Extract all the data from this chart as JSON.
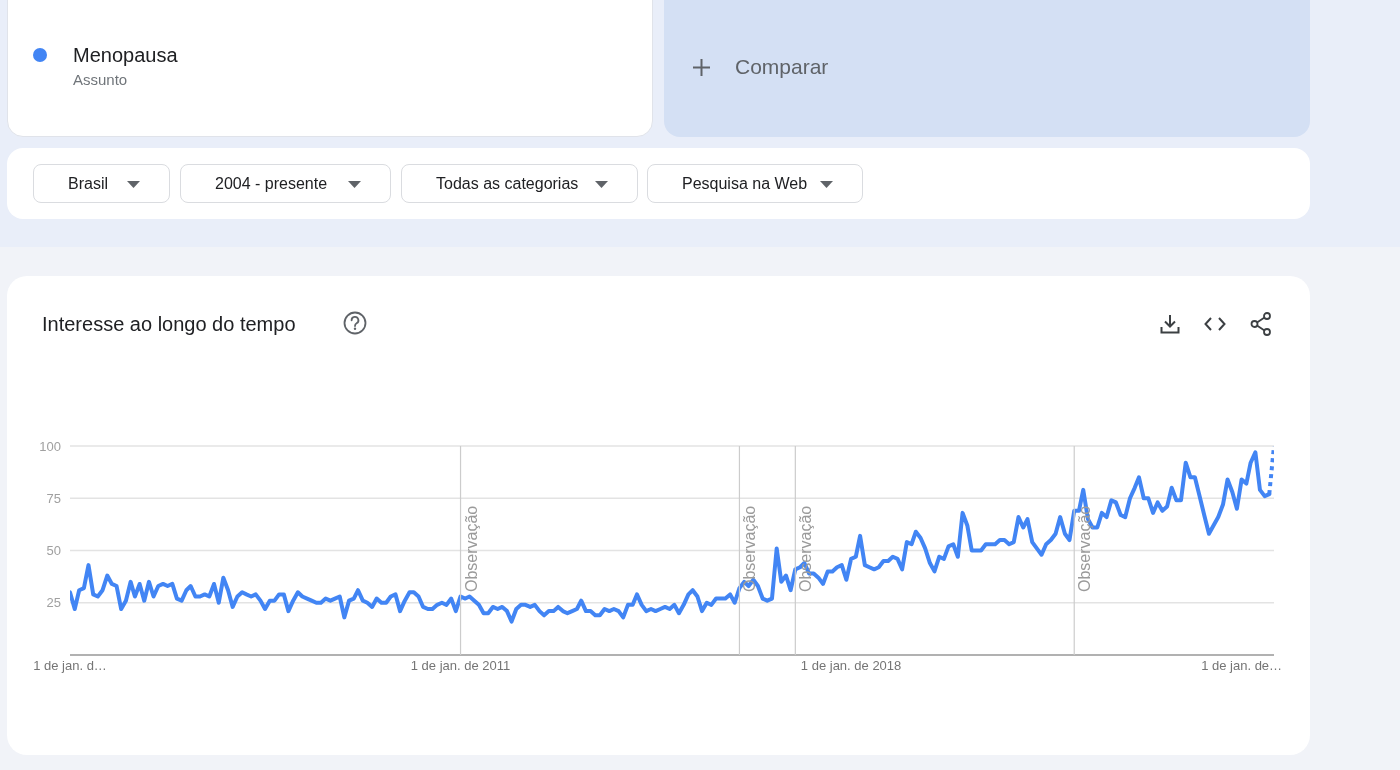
{
  "chart_data": {
    "type": "line",
    "title": "Interesse ao longo do tempo",
    "x": [
      "2004-01",
      "2004-02",
      "2004-03",
      "2004-04",
      "2004-05",
      "2004-06",
      "2004-07",
      "2004-08",
      "2004-09",
      "2004-10",
      "2004-11",
      "2004-12",
      "2005-01",
      "2005-02",
      "2005-03",
      "2005-04",
      "2005-05",
      "2005-06",
      "2005-07",
      "2005-08",
      "2005-09",
      "2005-10",
      "2005-11",
      "2005-12",
      "2006-01",
      "2006-02",
      "2006-03",
      "2006-04",
      "2006-05",
      "2006-06",
      "2006-07",
      "2006-08",
      "2006-09",
      "2006-10",
      "2006-11",
      "2006-12",
      "2007-01",
      "2007-02",
      "2007-03",
      "2007-04",
      "2007-05",
      "2007-06",
      "2007-07",
      "2007-08",
      "2007-09",
      "2007-10",
      "2007-11",
      "2007-12",
      "2008-01",
      "2008-02",
      "2008-03",
      "2008-04",
      "2008-05",
      "2008-06",
      "2008-07",
      "2008-08",
      "2008-09",
      "2008-10",
      "2008-11",
      "2008-12",
      "2009-01",
      "2009-02",
      "2009-03",
      "2009-04",
      "2009-05",
      "2009-06",
      "2009-07",
      "2009-08",
      "2009-09",
      "2009-10",
      "2009-11",
      "2009-12",
      "2010-01",
      "2010-02",
      "2010-03",
      "2010-04",
      "2010-05",
      "2010-06",
      "2010-07",
      "2010-08",
      "2010-09",
      "2010-10",
      "2010-11",
      "2010-12",
      "2011-01",
      "2011-02",
      "2011-03",
      "2011-04",
      "2011-05",
      "2011-06",
      "2011-07",
      "2011-08",
      "2011-09",
      "2011-10",
      "2011-11",
      "2011-12",
      "2012-01",
      "2012-02",
      "2012-03",
      "2012-04",
      "2012-05",
      "2012-06",
      "2012-07",
      "2012-08",
      "2012-09",
      "2012-10",
      "2012-11",
      "2012-12",
      "2013-01",
      "2013-02",
      "2013-03",
      "2013-04",
      "2013-05",
      "2013-06",
      "2013-07",
      "2013-08",
      "2013-09",
      "2013-10",
      "2013-11",
      "2013-12",
      "2014-01",
      "2014-02",
      "2014-03",
      "2014-04",
      "2014-05",
      "2014-06",
      "2014-07",
      "2014-08",
      "2014-09",
      "2014-10",
      "2014-11",
      "2014-12",
      "2015-01",
      "2015-02",
      "2015-03",
      "2015-04",
      "2015-05",
      "2015-06",
      "2015-07",
      "2015-08",
      "2015-09",
      "2015-10",
      "2015-11",
      "2015-12",
      "2016-01",
      "2016-02",
      "2016-03",
      "2016-04",
      "2016-05",
      "2016-06",
      "2016-07",
      "2016-08",
      "2016-09",
      "2016-10",
      "2016-11",
      "2016-12",
      "2017-01",
      "2017-02",
      "2017-03",
      "2017-04",
      "2017-05",
      "2017-06",
      "2017-07",
      "2017-08",
      "2017-09",
      "2017-10",
      "2017-11",
      "2017-12",
      "2018-01",
      "2018-02",
      "2018-03",
      "2018-04",
      "2018-05",
      "2018-06",
      "2018-07",
      "2018-08",
      "2018-09",
      "2018-10",
      "2018-11",
      "2018-12",
      "2019-01",
      "2019-02",
      "2019-03",
      "2019-04",
      "2019-05",
      "2019-06",
      "2019-07",
      "2019-08",
      "2019-09",
      "2019-10",
      "2019-11",
      "2019-12",
      "2020-01",
      "2020-02",
      "2020-03",
      "2020-04",
      "2020-05",
      "2020-06",
      "2020-07",
      "2020-08",
      "2020-09",
      "2020-10",
      "2020-11",
      "2020-12",
      "2021-01",
      "2021-02",
      "2021-03",
      "2021-04",
      "2021-05",
      "2021-06",
      "2021-07",
      "2021-08",
      "2021-09",
      "2021-10",
      "2021-11",
      "2021-12",
      "2022-01",
      "2022-02",
      "2022-03",
      "2022-04",
      "2022-05",
      "2022-06",
      "2022-07",
      "2022-08",
      "2022-09",
      "2022-10",
      "2022-11",
      "2022-12",
      "2023-01",
      "2023-02",
      "2023-03",
      "2023-04",
      "2023-05",
      "2023-06",
      "2023-07",
      "2023-08",
      "2023-09",
      "2023-10",
      "2023-11",
      "2023-12",
      "2024-01",
      "2024-02",
      "2024-03",
      "2024-04",
      "2024-05",
      "2024-06",
      "2024-07",
      "2024-08",
      "2024-09",
      "2024-10",
      "2024-11",
      "2024-12",
      "2025-01",
      "2025-02",
      "2025-03",
      "2025-04",
      "2025-05",
      "2025-06",
      "2025-07",
      "2025-08"
    ],
    "series": [
      {
        "name": "Menopausa",
        "color": "#4285f4",
        "values": [
          30,
          22,
          31,
          32,
          43,
          29,
          28,
          31,
          38,
          34,
          33,
          22,
          26,
          35,
          28,
          34,
          26,
          35,
          28,
          33,
          34,
          33,
          34,
          27,
          26,
          31,
          33,
          28,
          28,
          29,
          28,
          34,
          25,
          37,
          31,
          23,
          28,
          30,
          29,
          28,
          29,
          26,
          22,
          26,
          26,
          29,
          29,
          21,
          26,
          30,
          28,
          27,
          26,
          25,
          25,
          27,
          26,
          27,
          28,
          18,
          26,
          27,
          31,
          26,
          25,
          23,
          27,
          25,
          25,
          28,
          29,
          21,
          26,
          30,
          30,
          28,
          23,
          22,
          22,
          24,
          25,
          24,
          27,
          21,
          28,
          27,
          28,
          26,
          24,
          20,
          20,
          23,
          22,
          23,
          21,
          16,
          22,
          24,
          24,
          23,
          24,
          21,
          19,
          21,
          21,
          23,
          21,
          20,
          21,
          22,
          26,
          21,
          21,
          19,
          19,
          22,
          21,
          22,
          21,
          18,
          24,
          24,
          29,
          24,
          21,
          22,
          21,
          22,
          23,
          22,
          24,
          20,
          24,
          29,
          31,
          28,
          21,
          25,
          24,
          27,
          27,
          27,
          29,
          25,
          32,
          35,
          33,
          36,
          33,
          27,
          26,
          27,
          51,
          35,
          38,
          31,
          41,
          42,
          44,
          39,
          39,
          37,
          34,
          40,
          40,
          42,
          43,
          36,
          46,
          47,
          57,
          43,
          42,
          41,
          42,
          45,
          45,
          47,
          46,
          41,
          54,
          53,
          59,
          56,
          51,
          44,
          40,
          47,
          46,
          52,
          53,
          47,
          68,
          62,
          50,
          50,
          50,
          53,
          53,
          53,
          55,
          55,
          53,
          54,
          66,
          61,
          65,
          54,
          51,
          48,
          53,
          55,
          58,
          66,
          58,
          55,
          69,
          69,
          79,
          65,
          61,
          61,
          68,
          66,
          74,
          73,
          67,
          66,
          75,
          80,
          85,
          75,
          75,
          68,
          73,
          69,
          71,
          80,
          74,
          74,
          92,
          85,
          85,
          76,
          67,
          58,
          62,
          66,
          72,
          84,
          78,
          70,
          84,
          82,
          92,
          97,
          79,
          76,
          77,
          null
        ]
      },
      {
        "color": "#4285f4",
        "line_style": "dotted",
        "values": [
          null,
          null,
          null,
          null,
          null,
          null,
          null,
          null,
          null,
          null,
          null,
          null,
          null,
          null,
          null,
          null,
          null,
          null,
          null,
          null,
          null,
          null,
          null,
          null,
          null,
          null,
          null,
          null,
          null,
          null,
          null,
          null,
          null,
          null,
          null,
          null,
          null,
          null,
          null,
          null,
          null,
          null,
          null,
          null,
          null,
          null,
          null,
          null,
          null,
          null,
          null,
          null,
          null,
          null,
          null,
          null,
          null,
          null,
          null,
          null,
          null,
          null,
          null,
          null,
          null,
          null,
          null,
          null,
          null,
          null,
          null,
          null,
          null,
          null,
          null,
          null,
          null,
          null,
          null,
          null,
          null,
          null,
          null,
          null,
          null,
          null,
          null,
          null,
          null,
          null,
          null,
          null,
          null,
          null,
          null,
          null,
          null,
          null,
          null,
          null,
          null,
          null,
          null,
          null,
          null,
          null,
          null,
          null,
          null,
          null,
          null,
          null,
          null,
          null,
          null,
          null,
          null,
          null,
          null,
          null,
          null,
          null,
          null,
          null,
          null,
          null,
          null,
          null,
          null,
          null,
          null,
          null,
          null,
          null,
          null,
          null,
          null,
          null,
          null,
          null,
          null,
          null,
          null,
          null,
          null,
          null,
          null,
          null,
          null,
          null,
          null,
          null,
          null,
          null,
          null,
          null,
          null,
          null,
          null,
          null,
          null,
          null,
          null,
          null,
          null,
          null,
          null,
          null,
          null,
          null,
          null,
          null,
          null,
          null,
          null,
          null,
          null,
          null,
          null,
          null,
          null,
          null,
          null,
          null,
          null,
          null,
          null,
          null,
          null,
          null,
          null,
          null,
          null,
          null,
          null,
          null,
          null,
          null,
          null,
          null,
          null,
          null,
          null,
          null,
          null,
          null,
          null,
          null,
          null,
          null,
          null,
          null,
          null,
          null,
          null,
          null,
          null,
          null,
          null,
          null,
          null,
          null,
          null,
          null,
          null,
          null,
          null,
          null,
          null,
          null,
          null,
          null,
          null,
          null,
          null,
          null,
          null,
          null,
          null,
          null,
          null,
          null,
          null,
          null,
          null,
          null,
          null,
          null,
          null,
          null,
          null,
          null,
          null,
          null,
          null,
          null,
          null,
          null,
          77,
          100
        ]
      }
    ],
    "xlim": [
      "2004-01",
      "2025-08"
    ],
    "xticks": [
      {
        "value": "2004-01",
        "label": "1 de jan. d…"
      },
      {
        "value": "2011-01",
        "label": "1 de jan. de 2011"
      },
      {
        "value": "2018-01",
        "label": "1 de jan. de 2018"
      },
      {
        "value": "2025-01",
        "label": "1 de jan. de…"
      }
    ],
    "ylim": [
      0,
      100
    ],
    "yticks": [
      25,
      50,
      75,
      100
    ],
    "grid": "y",
    "legend": "top left",
    "marker": "none",
    "line_style": "solid",
    "ref_lines": [
      {
        "axis": "x",
        "value": "2011-01",
        "label": "Observação",
        "color": "#cccccc"
      },
      {
        "axis": "x",
        "value": "2016-01",
        "label": "Observação",
        "color": "#cccccc"
      },
      {
        "axis": "x",
        "value": "2017-01",
        "label": "Observação",
        "color": "#cccccc"
      },
      {
        "axis": "x",
        "value": "2022-01",
        "label": "Observação",
        "color": "#cccccc"
      }
    ],
    "annotations": [
      "Assunto",
      "Comparar",
      "Brasil",
      "2004 - presente",
      "Todas as categorias",
      "Pesquisa na Web"
    ]
  }
}
